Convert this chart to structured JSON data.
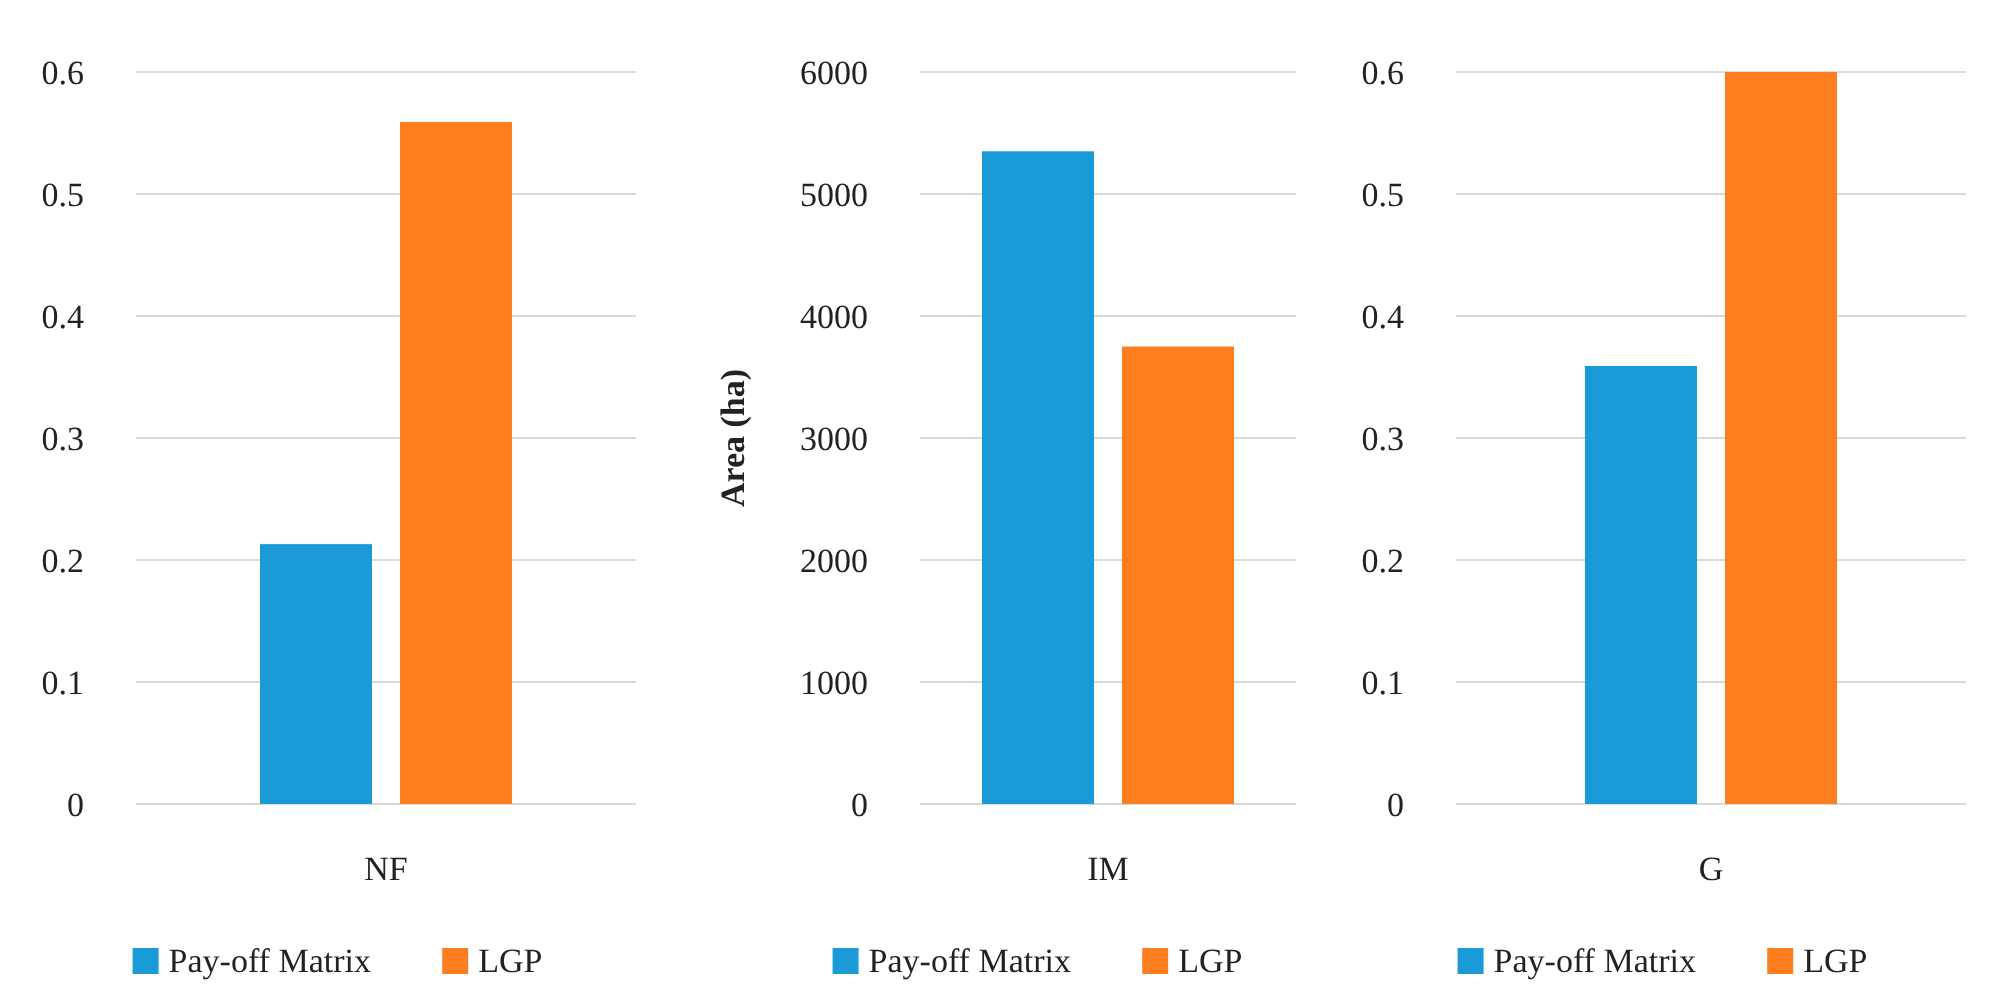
{
  "chart_data": [
    {
      "type": "bar",
      "categories": [
        "NF"
      ],
      "series": [
        {
          "name": "Pay-off Matrix",
          "color": "#1a9ad6",
          "values": [
            0.213
          ]
        },
        {
          "name": "LGP",
          "color": "#fd7e1e",
          "values": [
            0.559
          ]
        }
      ],
      "ylim": [
        0,
        0.6
      ],
      "yticks": [
        0,
        0.1,
        0.2,
        0.3,
        0.4,
        0.5,
        0.6
      ],
      "grid": "y",
      "legend": "bottom"
    },
    {
      "type": "bar",
      "categories": [
        "IM"
      ],
      "ylabel": "Area (ha)",
      "series": [
        {
          "name": "Pay-off Matrix",
          "color": "#1a9ad6",
          "values": [
            5350
          ]
        },
        {
          "name": "LGP",
          "color": "#fd7e1e",
          "values": [
            3750
          ]
        }
      ],
      "ylim": [
        0,
        6000
      ],
      "yticks": [
        0,
        1000,
        2000,
        3000,
        4000,
        5000,
        6000
      ],
      "grid": "y",
      "legend": "bottom"
    },
    {
      "type": "bar",
      "categories": [
        "G"
      ],
      "series": [
        {
          "name": "Pay-off Matrix",
          "color": "#1a9ad6",
          "values": [
            0.359
          ]
        },
        {
          "name": "LGP",
          "color": "#fd7e1e",
          "values": [
            0.6
          ]
        }
      ],
      "ylim": [
        0,
        0.6
      ],
      "yticks": [
        0,
        0.1,
        0.2,
        0.3,
        0.4,
        0.5,
        0.6
      ],
      "grid": "y",
      "legend": "bottom"
    }
  ]
}
